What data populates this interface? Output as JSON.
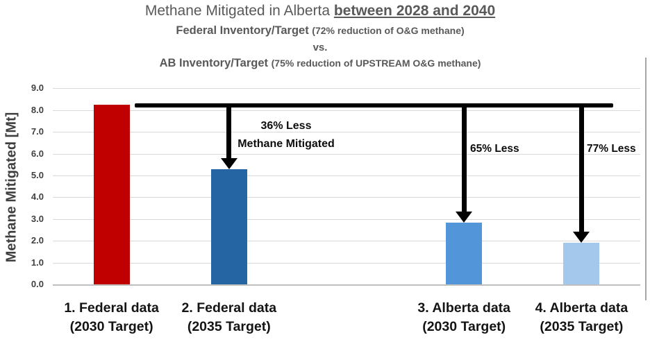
{
  "title": {
    "line1_regular": "Methane Mitigated in Alberta ",
    "line1_underlined": "between 2028 and 2040",
    "line2_main": "Federal Inventory/Target ",
    "line2_paren": "(72% reduction of O&G methane)",
    "vs": "vs.",
    "line4_main": "AB Inventory/Target ",
    "line4_paren": "(75% reduction of UPSTREAM O&G methane)"
  },
  "chart_data": {
    "type": "bar",
    "title": "Methane Mitigated in Alberta between 2028 and 2040",
    "subtitle": "Federal Inventory/Target (72% reduction of O&G methane) vs. AB Inventory/Target (75% reduction of UPSTREAM O&G methane)",
    "ylabel": "Methane Mitigated [Mt]",
    "xlabel": "",
    "ylim": [
      0,
      9
    ],
    "ytick_interval": 1.0,
    "ytick_labels": [
      "0.0",
      "1.0",
      "2.0",
      "3.0",
      "4.0",
      "5.0",
      "6.0",
      "7.0",
      "8.0",
      "9.0"
    ],
    "grid": true,
    "legend": false,
    "categories": [
      "1. Federal data (2030 Target)",
      "2. Federal data (2035 Target)",
      "3. Alberta data (2030 Target)",
      "4. Alberta data (2035 Target)"
    ],
    "category_lines": [
      [
        "1. Federal data",
        "(2030 Target)"
      ],
      [
        "2. Federal data",
        "(2035 Target)"
      ],
      [
        "3. Alberta data",
        "(2030 Target)"
      ],
      [
        "4. Alberta data",
        "(2035 Target)"
      ]
    ],
    "values": [
      8.25,
      5.3,
      2.85,
      1.9
    ],
    "bar_colors": [
      "#C00000",
      "#2565A4",
      "#5295D8",
      "#A4C8EC"
    ],
    "reference_line": {
      "value": 8.25,
      "color": "#000000"
    },
    "annotations": [
      {
        "lines": [
          "36% Less",
          "Methane Mitigated"
        ],
        "target_category_index": 1
      },
      {
        "lines": [
          "65% Less"
        ],
        "target_category_index": 2
      },
      {
        "lines": [
          "77% Less"
        ],
        "target_category_index": 3
      }
    ]
  },
  "colors": {
    "title_gray": "#595959",
    "axis_text": "#3F3F3F",
    "tick_text": "#404040",
    "gridline": "#D9D9D9",
    "baseline": "#BFBFBF",
    "annotation_text": "#0D0D0D",
    "category_text": "#141414",
    "reference_black": "#000000"
  }
}
